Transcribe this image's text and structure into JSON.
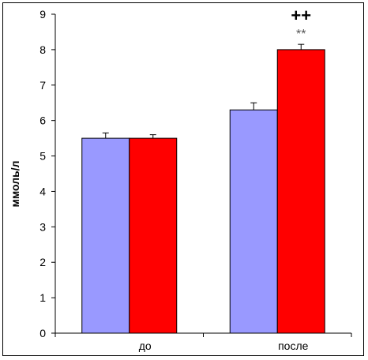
{
  "chart_data": {
    "type": "bar",
    "categories": [
      "до",
      "после"
    ],
    "series": [
      {
        "color": "#9999ff",
        "values": [
          5.5,
          6.3
        ],
        "errors": [
          0.15,
          0.2
        ]
      },
      {
        "color": "#ff0000",
        "values": [
          5.5,
          8.0
        ],
        "errors": [
          0.1,
          0.15
        ]
      }
    ],
    "ylabel": "ммоль/л",
    "ylim": [
      0,
      9
    ],
    "yticks": [
      0,
      1,
      2,
      3,
      4,
      5,
      6,
      7,
      8,
      9
    ],
    "ytick_labels": [
      "0",
      "1",
      "2",
      "3",
      "4",
      "5",
      "6",
      "7",
      "8",
      "9"
    ],
    "grid": false,
    "legend": "none",
    "annotations": [
      {
        "text": "++",
        "category_index": 1,
        "series_index": 1,
        "style": "plus"
      },
      {
        "text": "**",
        "category_index": 1,
        "series_index": 1,
        "style": "star"
      }
    ]
  }
}
